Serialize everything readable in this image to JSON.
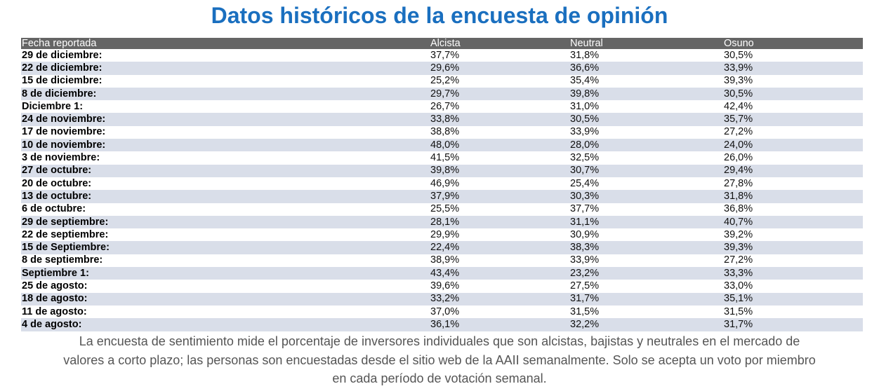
{
  "title": "Datos históricos de la encuesta de opinión",
  "colors": {
    "title": "#1a6fbf",
    "header_bg": "#656565",
    "header_text": "#ffffff",
    "row_alt_bg": "#d9dee9",
    "footnote_text": "#555555"
  },
  "table": {
    "headers": {
      "date": "Fecha reportada",
      "bullish": "Alcista",
      "neutral": "Neutral",
      "bearish": "Osuno"
    },
    "rows": [
      {
        "date": "29 de diciembre:",
        "bullish": "37,7%",
        "neutral": "31,8%",
        "bearish": "30,5%"
      },
      {
        "date": "22 de diciembre:",
        "bullish": "29,6%",
        "neutral": "36,6%",
        "bearish": "33,9%"
      },
      {
        "date": "15 de diciembre:",
        "bullish": "25,2%",
        "neutral": "35,4%",
        "bearish": "39,3%"
      },
      {
        "date": "8 de diciembre:",
        "bullish": "29,7%",
        "neutral": "39,8%",
        "bearish": "30,5%"
      },
      {
        "date": "Diciembre 1:",
        "bullish": "26,7%",
        "neutral": "31,0%",
        "bearish": "42,4%"
      },
      {
        "date": "24 de noviembre:",
        "bullish": "33,8%",
        "neutral": "30,5%",
        "bearish": "35,7%"
      },
      {
        "date": "17 de noviembre:",
        "bullish": "38,8%",
        "neutral": "33,9%",
        "bearish": "27,2%"
      },
      {
        "date": "10 de noviembre:",
        "bullish": "48,0%",
        "neutral": "28,0%",
        "bearish": "24,0%"
      },
      {
        "date": "3 de noviembre:",
        "bullish": "41,5%",
        "neutral": "32,5%",
        "bearish": "26,0%"
      },
      {
        "date": "27 de octubre:",
        "bullish": "39,8%",
        "neutral": "30,7%",
        "bearish": "29,4%"
      },
      {
        "date": "20 de octubre:",
        "bullish": "46,9%",
        "neutral": "25,4%",
        "bearish": "27,8%"
      },
      {
        "date": "13 de octubre:",
        "bullish": "37,9%",
        "neutral": "30,3%",
        "bearish": "31,8%"
      },
      {
        "date": "6 de octubre:",
        "bullish": "25,5%",
        "neutral": "37,7%",
        "bearish": "36,8%"
      },
      {
        "date": "29 de septiembre:",
        "bullish": "28,1%",
        "neutral": "31,1%",
        "bearish": "40,7%"
      },
      {
        "date": "22 de septiembre:",
        "bullish": "29,9%",
        "neutral": "30,9%",
        "bearish": "39,2%"
      },
      {
        "date": "15 de Septiembre:",
        "bullish": "22,4%",
        "neutral": "38,3%",
        "bearish": "39,3%"
      },
      {
        "date": "8 de septiembre:",
        "bullish": "38,9%",
        "neutral": "33,9%",
        "bearish": "27,2%"
      },
      {
        "date": "Septiembre 1:",
        "bullish": "43,4%",
        "neutral": "23,2%",
        "bearish": "33,3%"
      },
      {
        "date": "25 de agosto:",
        "bullish": "39,6%",
        "neutral": "27,5%",
        "bearish": "33,0%"
      },
      {
        "date": "18 de agosto:",
        "bullish": "33,2%",
        "neutral": "31,7%",
        "bearish": "35,1%"
      },
      {
        "date": "11 de agosto:",
        "bullish": "37,0%",
        "neutral": "31,5%",
        "bearish": "31,5%"
      },
      {
        "date": "4 de agosto:",
        "bullish": "36,1%",
        "neutral": "32,2%",
        "bearish": "31,7%"
      }
    ]
  },
  "footnote": "La encuesta de sentimiento mide el porcentaje de inversores individuales que son alcistas, bajistas y neutrales en el mercado de valores a corto plazo; las personas son encuestadas desde el sitio web de la AAII semanalmente. Solo se acepta un voto por miembro en cada período de votación semanal."
}
